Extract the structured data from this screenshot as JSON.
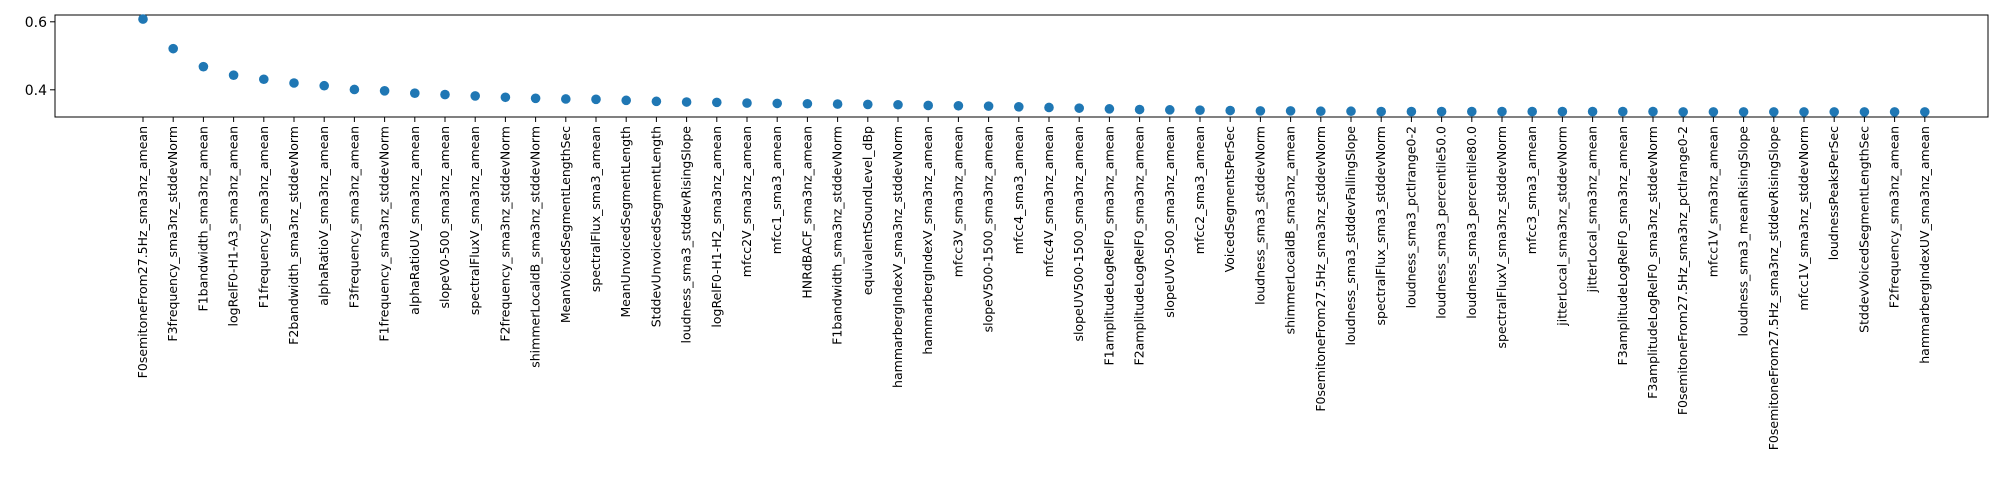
{
  "chart_data": {
    "type": "scatter",
    "title": "",
    "xlabel": "",
    "ylabel": "",
    "ylim": [
      0.32,
      0.62
    ],
    "yticks": [
      0.4,
      0.6
    ],
    "ytick_labels": [
      "0.4",
      "0.6"
    ],
    "grid": false,
    "marker_color": "#1f77b4",
    "categories": [
      "F0semitoneFrom27.5Hz_sma3nz_amean",
      "F3frequency_sma3nz_stddevNorm",
      "F1bandwidth_sma3nz_amean",
      "logRelF0-H1-A3_sma3nz_amean",
      "F1frequency_sma3nz_amean",
      "F2bandwidth_sma3nz_stddevNorm",
      "alphaRatioV_sma3nz_amean",
      "F3frequency_sma3nz_amean",
      "F1frequency_sma3nz_stddevNorm",
      "alphaRatioUV_sma3nz_amean",
      "slopeV0-500_sma3nz_amean",
      "spectralFluxV_sma3nz_amean",
      "F2frequency_sma3nz_stddevNorm",
      "shimmerLocaldB_sma3nz_stddevNorm",
      "MeanVoicedSegmentLengthSec",
      "spectralFlux_sma3_amean",
      "MeanUnvoicedSegmentLength",
      "StddevUnvoicedSegmentLength",
      "loudness_sma3_stddevRisingSlope",
      "logRelF0-H1-H2_sma3nz_amean",
      "mfcc2V_sma3nz_amean",
      "mfcc1_sma3_amean",
      "HNRdBACF_sma3nz_amean",
      "F1bandwidth_sma3nz_stddevNorm",
      "equivalentSoundLevel_dBp",
      "hammarbergIndexV_sma3nz_stddevNorm",
      "hammarbergIndexV_sma3nz_amean",
      "mfcc3V_sma3nz_amean",
      "slopeV500-1500_sma3nz_amean",
      "mfcc4_sma3_amean",
      "mfcc4V_sma3nz_amean",
      "slopeUV500-1500_sma3nz_amean",
      "F1amplitudeLogRelF0_sma3nz_amean",
      "F2amplitudeLogRelF0_sma3nz_amean",
      "slopeUV0-500_sma3nz_amean",
      "mfcc2_sma3_amean",
      "VoicedSegmentsPerSec",
      "loudness_sma3_stddevNorm",
      "shimmerLocaldB_sma3nz_amean",
      "F0semitoneFrom27.5Hz_sma3nz_stddevNorm",
      "loudness_sma3_stddevFallingSlope",
      "spectralFlux_sma3_stddevNorm",
      "loudness_sma3_pctlrange0-2",
      "loudness_sma3_percentile50.0",
      "loudness_sma3_percentile80.0",
      "spectralFluxV_sma3nz_stddevNorm",
      "mfcc3_sma3_amean",
      "jitterLocal_sma3nz_stddevNorm",
      "jitterLocal_sma3nz_amean",
      "F3amplitudeLogRelF0_sma3nz_amean",
      "F3amplitudeLogRelF0_sma3nz_stddevNorm",
      "F0semitoneFrom27.5Hz_sma3nz_pctlrange0-2",
      "mfcc1V_sma3nz_amean",
      "loudness_sma3_meanRisingSlope",
      "F0semitoneFrom27.5Hz_sma3nz_stddevRisingSlope",
      "mfcc1V_sma3nz_stddevNorm",
      "loudnessPeaksPerSec",
      "StddevVoicedSegmentLengthSec",
      "F2frequency_sma3nz_amean",
      "hammarbergIndexUV_sma3nz_amean"
    ],
    "values": [
      0.608,
      0.521,
      0.468,
      0.443,
      0.431,
      0.42,
      0.412,
      0.401,
      0.397,
      0.39,
      0.386,
      0.382,
      0.378,
      0.375,
      0.373,
      0.372,
      0.369,
      0.366,
      0.364,
      0.363,
      0.361,
      0.36,
      0.359,
      0.358,
      0.357,
      0.356,
      0.354,
      0.353,
      0.352,
      0.35,
      0.348,
      0.346,
      0.344,
      0.342,
      0.341,
      0.34,
      0.339,
      0.338,
      0.338,
      0.337,
      0.337,
      0.336,
      0.336,
      0.336,
      0.336,
      0.336,
      0.336,
      0.336,
      0.336,
      0.336,
      0.336,
      0.335,
      0.335,
      0.335,
      0.335,
      0.335,
      0.335,
      0.335,
      0.335,
      0.335
    ]
  }
}
